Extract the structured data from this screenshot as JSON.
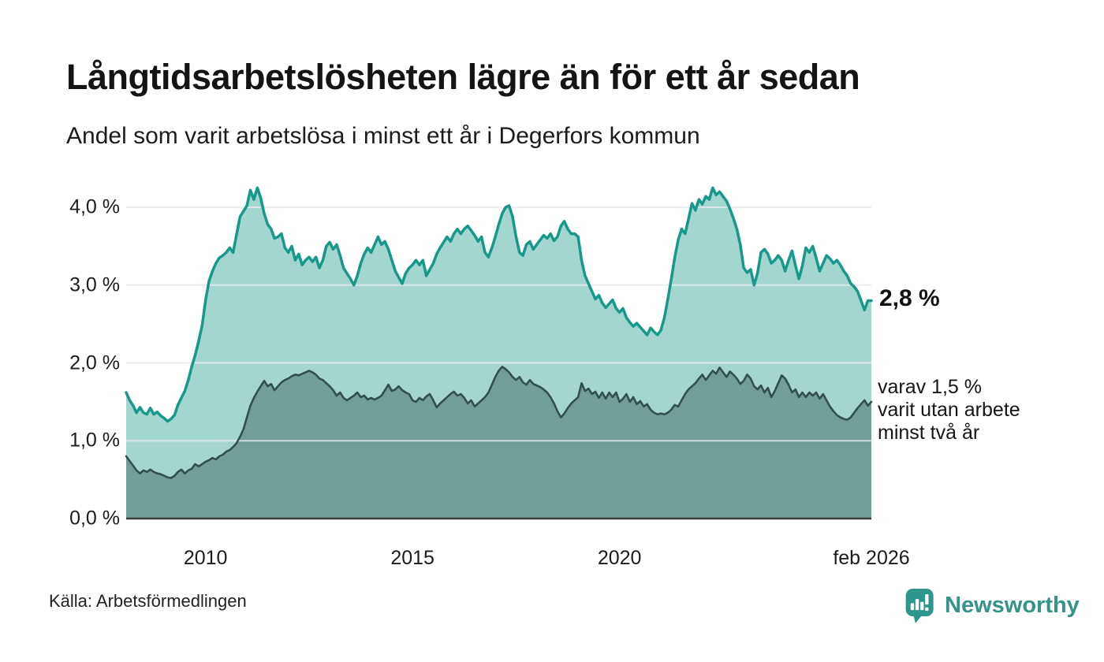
{
  "header": {
    "title": "Långtidsarbetslösheten lägre än för ett år sedan",
    "subtitle": "Andel som varit arbetslösa i minst ett år i Degerfors kommun"
  },
  "colors": {
    "area_1yr_fill": "#a3d6ce",
    "line_1yr": "#16988a",
    "area_2yr_fill": "#6f9f98",
    "line_2yr": "#32504b",
    "gridline": "#e9e9ee",
    "axis_baseline": "#3a3a3a",
    "logo_teal": "#2f968c",
    "logo_text_teal": "#35938a"
  },
  "chart_data": {
    "type": "area",
    "title": "Långtidsarbetslösheten lägre än för ett år sedan",
    "subtitle": "Andel som varit arbetslösa i minst ett år i Degerfors kommun",
    "unit": "%",
    "frequency": "monthly",
    "x_start": "2008-02",
    "x_end": "2026-02",
    "ylim": [
      0,
      4.3
    ],
    "grid": true,
    "y_ticks": [
      {
        "label": "0,0 %",
        "value": 0
      },
      {
        "label": "1,0 %",
        "value": 1
      },
      {
        "label": "2,0 %",
        "value": 2
      },
      {
        "label": "3,0 %",
        "value": 3
      },
      {
        "label": "4,0 %",
        "value": 4
      }
    ],
    "x_ticks": [
      {
        "label": "2010",
        "month_index": 23
      },
      {
        "label": "2015",
        "month_index": 83
      },
      {
        "label": "2020",
        "month_index": 143
      },
      {
        "label": "feb 2026",
        "month_index": 216
      }
    ],
    "series": [
      {
        "name": "Andel arbetslösa minst ett år",
        "latest_value": 2.8,
        "values": [
          1.62,
          1.52,
          1.45,
          1.36,
          1.43,
          1.36,
          1.34,
          1.42,
          1.34,
          1.37,
          1.32,
          1.29,
          1.25,
          1.28,
          1.33,
          1.46,
          1.55,
          1.64,
          1.78,
          1.95,
          2.1,
          2.28,
          2.48,
          2.8,
          3.05,
          3.18,
          3.28,
          3.35,
          3.38,
          3.42,
          3.48,
          3.42,
          3.65,
          3.88,
          3.95,
          4.02,
          4.22,
          4.1,
          4.25,
          4.12,
          3.92,
          3.78,
          3.72,
          3.6,
          3.62,
          3.66,
          3.48,
          3.42,
          3.5,
          3.32,
          3.4,
          3.26,
          3.32,
          3.36,
          3.3,
          3.36,
          3.22,
          3.32,
          3.5,
          3.55,
          3.46,
          3.52,
          3.38,
          3.22,
          3.15,
          3.08,
          3.0,
          3.12,
          3.28,
          3.4,
          3.48,
          3.42,
          3.52,
          3.62,
          3.52,
          3.56,
          3.46,
          3.32,
          3.18,
          3.1,
          3.02,
          3.15,
          3.22,
          3.26,
          3.32,
          3.26,
          3.32,
          3.12,
          3.2,
          3.28,
          3.4,
          3.48,
          3.55,
          3.62,
          3.56,
          3.66,
          3.72,
          3.66,
          3.72,
          3.76,
          3.7,
          3.64,
          3.56,
          3.62,
          3.42,
          3.36,
          3.48,
          3.62,
          3.78,
          3.92,
          4.0,
          4.02,
          3.88,
          3.62,
          3.42,
          3.38,
          3.52,
          3.56,
          3.46,
          3.52,
          3.58,
          3.64,
          3.6,
          3.66,
          3.57,
          3.62,
          3.76,
          3.82,
          3.72,
          3.66,
          3.66,
          3.62,
          3.32,
          3.12,
          3.02,
          2.92,
          2.82,
          2.87,
          2.77,
          2.71,
          2.76,
          2.81,
          2.7,
          2.65,
          2.7,
          2.58,
          2.52,
          2.47,
          2.51,
          2.46,
          2.41,
          2.36,
          2.45,
          2.4,
          2.36,
          2.42,
          2.58,
          2.82,
          3.08,
          3.35,
          3.58,
          3.72,
          3.66,
          3.85,
          4.05,
          3.96,
          4.1,
          4.04,
          4.14,
          4.1,
          4.25,
          4.16,
          4.2,
          4.14,
          4.08,
          3.98,
          3.86,
          3.72,
          3.52,
          3.22,
          3.16,
          3.2,
          3.0,
          3.15,
          3.42,
          3.46,
          3.4,
          3.28,
          3.32,
          3.38,
          3.32,
          3.18,
          3.32,
          3.44,
          3.25,
          3.08,
          3.25,
          3.48,
          3.42,
          3.5,
          3.35,
          3.18,
          3.28,
          3.38,
          3.34,
          3.28,
          3.32,
          3.26,
          3.18,
          3.12,
          3.02,
          2.98,
          2.92,
          2.8,
          2.68,
          2.8,
          2.8
        ]
      },
      {
        "name": "varav utan arbete minst två år",
        "latest_value": 1.5,
        "values": [
          0.8,
          0.74,
          0.68,
          0.62,
          0.58,
          0.62,
          0.6,
          0.63,
          0.6,
          0.58,
          0.57,
          0.55,
          0.53,
          0.52,
          0.55,
          0.6,
          0.63,
          0.58,
          0.62,
          0.64,
          0.7,
          0.67,
          0.7,
          0.73,
          0.75,
          0.78,
          0.76,
          0.8,
          0.82,
          0.86,
          0.88,
          0.92,
          0.97,
          1.05,
          1.15,
          1.3,
          1.45,
          1.55,
          1.63,
          1.7,
          1.77,
          1.7,
          1.73,
          1.65,
          1.7,
          1.75,
          1.78,
          1.8,
          1.83,
          1.85,
          1.84,
          1.86,
          1.88,
          1.9,
          1.88,
          1.85,
          1.8,
          1.78,
          1.74,
          1.7,
          1.65,
          1.58,
          1.62,
          1.55,
          1.52,
          1.55,
          1.58,
          1.62,
          1.56,
          1.58,
          1.53,
          1.55,
          1.53,
          1.55,
          1.58,
          1.65,
          1.72,
          1.64,
          1.66,
          1.7,
          1.65,
          1.62,
          1.6,
          1.52,
          1.5,
          1.55,
          1.52,
          1.57,
          1.6,
          1.52,
          1.43,
          1.48,
          1.52,
          1.56,
          1.6,
          1.63,
          1.58,
          1.6,
          1.55,
          1.48,
          1.52,
          1.44,
          1.48,
          1.52,
          1.56,
          1.62,
          1.72,
          1.82,
          1.9,
          1.95,
          1.92,
          1.88,
          1.82,
          1.78,
          1.82,
          1.75,
          1.72,
          1.78,
          1.73,
          1.71,
          1.69,
          1.66,
          1.62,
          1.56,
          1.48,
          1.38,
          1.3,
          1.35,
          1.42,
          1.48,
          1.52,
          1.56,
          1.74,
          1.64,
          1.67,
          1.6,
          1.63,
          1.55,
          1.62,
          1.54,
          1.62,
          1.56,
          1.62,
          1.5,
          1.54,
          1.6,
          1.5,
          1.56,
          1.47,
          1.51,
          1.44,
          1.47,
          1.4,
          1.36,
          1.34,
          1.35,
          1.34,
          1.36,
          1.4,
          1.46,
          1.44,
          1.52,
          1.6,
          1.66,
          1.7,
          1.74,
          1.8,
          1.85,
          1.78,
          1.84,
          1.9,
          1.86,
          1.94,
          1.88,
          1.82,
          1.89,
          1.85,
          1.8,
          1.73,
          1.77,
          1.85,
          1.8,
          1.7,
          1.66,
          1.71,
          1.62,
          1.68,
          1.56,
          1.64,
          1.74,
          1.84,
          1.8,
          1.72,
          1.62,
          1.66,
          1.56,
          1.62,
          1.56,
          1.62,
          1.58,
          1.62,
          1.54,
          1.6,
          1.52,
          1.44,
          1.38,
          1.33,
          1.3,
          1.28,
          1.27,
          1.3,
          1.36,
          1.42,
          1.47,
          1.52,
          1.45,
          1.5
        ]
      }
    ],
    "annotations": {
      "latest_total": "2,8 %",
      "sub_lines": [
        "varav 1,5 %",
        "varit utan arbete",
        "minst två år"
      ]
    },
    "legend_position": "none"
  },
  "footer": {
    "source": "Källa: Arbetsförmedlingen",
    "logo_text": "Newsworthy"
  }
}
